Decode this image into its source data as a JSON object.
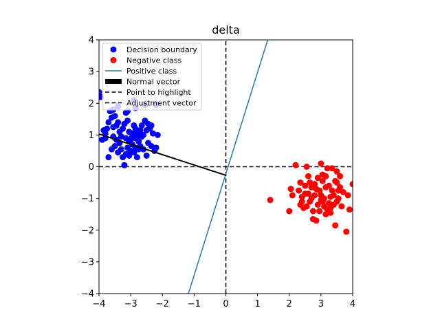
{
  "chart_data": {
    "type": "scatter",
    "title": "delta",
    "xlabel": "",
    "ylabel": "",
    "xlim": [
      -4,
      4
    ],
    "ylim": [
      -4,
      4
    ],
    "xticks": [
      -4,
      -3,
      -2,
      -1,
      0,
      1,
      2,
      3,
      4
    ],
    "yticks": [
      -4,
      -3,
      -2,
      -1,
      0,
      1,
      2,
      3,
      4
    ],
    "grid": false,
    "legend_position": "upper-left",
    "series": [
      {
        "name": "Decision boundary",
        "kind": "scatter",
        "color": "#0000ff",
        "points": [
          [
            -4.0,
            2.35
          ],
          [
            -3.95,
            2.2
          ],
          [
            -3.85,
            1.15
          ],
          [
            -3.8,
            0.9
          ],
          [
            -3.75,
            1.2
          ],
          [
            -3.7,
            1.4
          ],
          [
            -3.65,
            1.75
          ],
          [
            -3.6,
            1.55
          ],
          [
            -3.55,
            1.25
          ],
          [
            -3.5,
            1.6
          ],
          [
            -3.45,
            1.3
          ],
          [
            -3.4,
            1.4
          ],
          [
            -3.35,
            1.1
          ],
          [
            -3.3,
            0.95
          ],
          [
            -3.25,
            1.2
          ],
          [
            -3.2,
            1.35
          ],
          [
            -3.15,
            1.7
          ],
          [
            -3.1,
            1.45
          ],
          [
            -3.05,
            1.1
          ],
          [
            -3.0,
            0.85
          ],
          [
            -2.95,
            1.05
          ],
          [
            -2.9,
            1.3
          ],
          [
            -2.85,
            0.9
          ],
          [
            -2.8,
            1.05
          ],
          [
            -2.75,
            0.8
          ],
          [
            -2.7,
            1.15
          ],
          [
            -2.65,
            1.3
          ],
          [
            -2.6,
            1.0
          ],
          [
            -2.55,
            1.45
          ],
          [
            -2.5,
            1.15
          ],
          [
            -2.45,
            1.35
          ],
          [
            -2.4,
            1.2
          ],
          [
            -2.35,
            1.3
          ],
          [
            -2.3,
            1.05
          ],
          [
            -2.25,
            0.5
          ],
          [
            -2.2,
            0.6
          ],
          [
            -2.15,
            1.0
          ],
          [
            -3.7,
            0.3
          ],
          [
            -3.6,
            0.55
          ],
          [
            -3.5,
            0.65
          ],
          [
            -3.4,
            0.45
          ],
          [
            -3.3,
            0.55
          ],
          [
            -3.25,
            0.3
          ],
          [
            -3.2,
            0.05
          ],
          [
            -3.15,
            0.4
          ],
          [
            -3.1,
            0.6
          ],
          [
            -3.05,
            0.35
          ],
          [
            -3.0,
            0.5
          ],
          [
            -2.95,
            0.7
          ],
          [
            -2.9,
            0.45
          ],
          [
            -2.85,
            0.6
          ],
          [
            -2.8,
            0.3
          ],
          [
            -2.75,
            0.55
          ],
          [
            -2.7,
            0.65
          ],
          [
            -2.6,
            0.55
          ],
          [
            -2.5,
            0.35
          ],
          [
            -2.45,
            0.75
          ],
          [
            -2.35,
            0.65
          ],
          [
            -3.45,
            0.85
          ],
          [
            -3.35,
            0.75
          ],
          [
            -3.15,
            0.9
          ],
          [
            -3.05,
            0.8
          ],
          [
            -2.95,
            0.95
          ],
          [
            -2.85,
            1.2
          ],
          [
            -2.75,
            1.0
          ],
          [
            -2.65,
            0.95
          ],
          [
            -3.55,
            0.95
          ],
          [
            -3.8,
            1.05
          ],
          [
            -3.9,
            0.85
          ],
          [
            -2.9,
            2.1
          ],
          [
            -2.85,
            1.85
          ],
          [
            -2.55,
            1.95
          ],
          [
            -2.2,
            1.95
          ],
          [
            -3.4,
            1.9
          ],
          [
            -3.55,
            1.8
          ],
          [
            -3.1,
            1.75
          ]
        ]
      },
      {
        "name": "Negative class",
        "kind": "scatter",
        "color": "#ff0000",
        "points": [
          [
            1.4,
            -1.05
          ],
          [
            2.0,
            -1.4
          ],
          [
            2.05,
            -0.7
          ],
          [
            2.1,
            -0.9
          ],
          [
            2.2,
            0.05
          ],
          [
            2.3,
            -0.75
          ],
          [
            2.35,
            -1.2
          ],
          [
            2.4,
            -0.95
          ],
          [
            2.45,
            -1.3
          ],
          [
            2.5,
            -0.6
          ],
          [
            2.55,
            0.0
          ],
          [
            2.6,
            -0.85
          ],
          [
            2.65,
            -1.1
          ],
          [
            2.7,
            -0.65
          ],
          [
            2.75,
            -1.4
          ],
          [
            2.8,
            -0.9
          ],
          [
            2.85,
            -1.7
          ],
          [
            2.9,
            -1.2
          ],
          [
            2.95,
            -0.75
          ],
          [
            3.0,
            0.1
          ],
          [
            3.05,
            -0.45
          ],
          [
            3.1,
            -1.0
          ],
          [
            3.15,
            -0.3
          ],
          [
            3.2,
            -1.35
          ],
          [
            3.25,
            -0.6
          ],
          [
            3.3,
            -0.95
          ],
          [
            3.35,
            -0.05
          ],
          [
            3.4,
            -1.2
          ],
          [
            3.45,
            -1.85
          ],
          [
            3.5,
            -0.5
          ],
          [
            3.55,
            -1.0
          ],
          [
            3.6,
            -0.3
          ],
          [
            3.65,
            -1.25
          ],
          [
            3.7,
            -0.8
          ],
          [
            3.8,
            -2.05
          ],
          [
            3.85,
            -0.9
          ],
          [
            3.9,
            -1.35
          ],
          [
            4.0,
            -0.55
          ],
          [
            2.6,
            -0.3
          ],
          [
            2.7,
            -1.0
          ],
          [
            2.8,
            -0.55
          ],
          [
            2.9,
            -0.35
          ],
          [
            3.0,
            -0.9
          ],
          [
            3.05,
            -1.1
          ],
          [
            3.15,
            -0.65
          ],
          [
            3.25,
            -1.15
          ],
          [
            3.35,
            -0.75
          ],
          [
            3.45,
            -0.45
          ],
          [
            3.55,
            -0.75
          ],
          [
            3.6,
            -0.65
          ],
          [
            2.75,
            -1.65
          ],
          [
            3.2,
            -0.05
          ],
          [
            3.4,
            -0.9
          ],
          [
            2.95,
            -1.4
          ],
          [
            3.3,
            -1.45
          ],
          [
            2.85,
            -0.7
          ],
          [
            3.1,
            -1.25
          ],
          [
            3.5,
            -1.1
          ],
          [
            2.5,
            -0.85
          ],
          [
            2.35,
            -0.5
          ],
          [
            3.05,
            -0.25
          ],
          [
            2.65,
            -0.5
          ],
          [
            3.5,
            -0.15
          ],
          [
            3.3,
            -1.3
          ],
          [
            3.0,
            -1.05
          ],
          [
            2.4,
            -1.1
          ],
          [
            3.15,
            -1.5
          ],
          [
            2.55,
            -1.25
          ]
        ]
      },
      {
        "name": "Positive class",
        "kind": "line",
        "color": "#1f77b4",
        "points": [
          [
            -1.18,
            -4.0
          ],
          [
            1.32,
            4.0
          ]
        ]
      },
      {
        "name": "Normal vector",
        "kind": "line",
        "color": "#000000",
        "points": [
          [
            -4.0,
            1.03
          ],
          [
            0.0,
            -0.27
          ]
        ]
      },
      {
        "name": "Point to highlight",
        "kind": "dashed-line",
        "color": "#000000",
        "points": [
          [
            -4.0,
            0.0
          ],
          [
            4.0,
            0.0
          ]
        ]
      },
      {
        "name": "Adjustment vector",
        "kind": "dashed-line",
        "color": "#000000",
        "points": [
          [
            0.0,
            -4.0
          ],
          [
            0.0,
            4.0
          ]
        ]
      }
    ]
  }
}
